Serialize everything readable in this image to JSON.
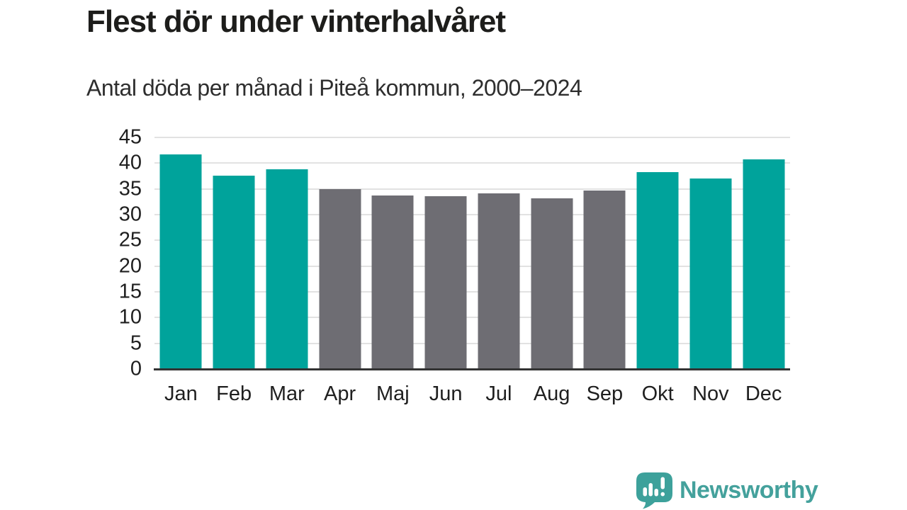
{
  "header": {
    "title": "Flest dör under vinterhalvåret",
    "subtitle": "Antal döda per månad i Piteå kommun, 2000–2024"
  },
  "chart_data": {
    "type": "bar",
    "title": "Flest dör under vinterhalvåret",
    "subtitle": "Antal döda per månad i Piteå kommun, 2000–2024",
    "categories": [
      "Jan",
      "Feb",
      "Mar",
      "Apr",
      "Maj",
      "Jun",
      "Jul",
      "Aug",
      "Sep",
      "Okt",
      "Nov",
      "Dec"
    ],
    "values": [
      41.7,
      37.6,
      38.8,
      35.0,
      33.7,
      33.6,
      34.1,
      33.1,
      34.7,
      38.3,
      37.0,
      40.7
    ],
    "bar_colors": [
      "#00a39b",
      "#00a39b",
      "#00a39b",
      "#6e6d73",
      "#6e6d73",
      "#6e6d73",
      "#6e6d73",
      "#6e6d73",
      "#6e6d73",
      "#00a39b",
      "#00a39b",
      "#00a39b"
    ],
    "highlight_note": "winter months (Jan–Mar, Okt–Dec) teal, summer months (Apr–Sep) gray",
    "xlabel": "",
    "ylabel": "",
    "ylim": [
      0,
      45
    ],
    "yticks": [
      0,
      5,
      10,
      15,
      20,
      25,
      30,
      35,
      40,
      45
    ],
    "grid": "horizontal",
    "legend": "none",
    "colors": {
      "winter_bar": "#00a39b",
      "summer_bar": "#6e6d73",
      "gridline": "#e2e2e2",
      "axis_line": "#333333",
      "text": "#1f1f1f"
    }
  },
  "footer": {
    "logo_text": "Newsworthy",
    "logo_icon": "newsworthy-speech-bubble-bar-chart-icon",
    "logo_color": "#44a19c"
  }
}
